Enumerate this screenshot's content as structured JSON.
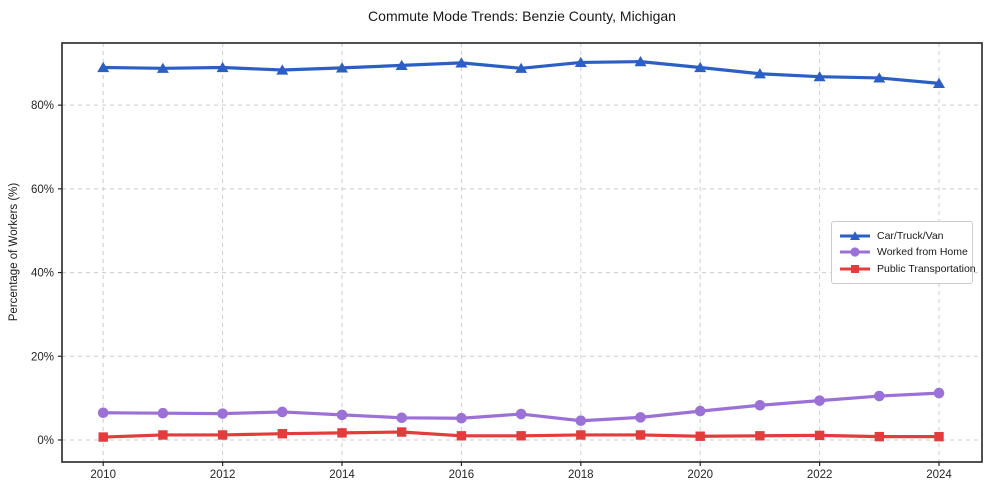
{
  "chart_data": {
    "type": "line",
    "title": "Commute Mode Trends: Benzie County, Michigan",
    "xlabel": "",
    "ylabel": "Percentage of Workers (%)",
    "x": [
      2010,
      2011,
      2012,
      2013,
      2014,
      2015,
      2016,
      2017,
      2018,
      2019,
      2020,
      2021,
      2022,
      2023,
      2024
    ],
    "series": [
      {
        "name": "Car/Truck/Van",
        "color": "#2b5fc4",
        "marker": "triangle",
        "values": [
          89.0,
          88.8,
          89.0,
          88.4,
          88.9,
          89.5,
          90.1,
          88.8,
          90.2,
          90.4,
          89.0,
          87.5,
          86.8,
          86.5,
          85.2
        ]
      },
      {
        "name": "Worked from Home",
        "color": "#9b71d8",
        "marker": "circle",
        "values": [
          6.5,
          6.4,
          6.3,
          6.7,
          6.0,
          5.3,
          5.2,
          6.2,
          4.6,
          5.4,
          6.9,
          8.3,
          9.4,
          10.5,
          11.2
        ]
      },
      {
        "name": "Public Transportation",
        "color": "#e23c3c",
        "marker": "square",
        "values": [
          0.7,
          1.2,
          1.2,
          1.5,
          1.7,
          1.9,
          1.0,
          1.0,
          1.2,
          1.2,
          0.9,
          1.0,
          1.1,
          0.8,
          0.8
        ]
      }
    ],
    "xticks": {
      "values": [
        2010,
        2012,
        2014,
        2016,
        2018,
        2020,
        2022,
        2024
      ],
      "labels": [
        "2010",
        "2012",
        "2014",
        "2016",
        "2018",
        "2020",
        "2022",
        "2024"
      ]
    },
    "yticks": {
      "values": [
        0,
        20,
        40,
        60,
        80
      ],
      "labels": [
        "0%",
        "20%",
        "40%",
        "60%",
        "80%"
      ]
    },
    "xlim": [
      2009.31,
      2024.72
    ],
    "ylim": [
      -5.26,
      94.85
    ],
    "grid": true,
    "legend_position": "center-right",
    "frame_color": "#262626",
    "grid_color": "#cdcdcd"
  }
}
